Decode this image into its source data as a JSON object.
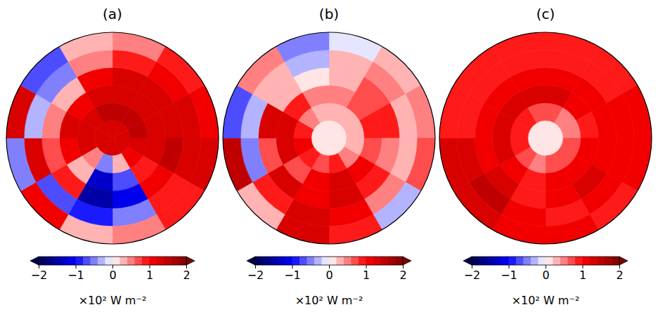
{
  "chart_data": [
    {
      "type": "heatmap",
      "title": "(a)",
      "cells": [
        [
          1.3,
          1.3,
          1.3,
          1.3,
          1.3,
          1.3,
          1.3,
          1.3,
          1.3,
          1.3,
          1.3,
          1.3
        ],
        [
          1.4,
          1.5,
          1.5,
          1.3,
          1.0,
          0.2,
          -0.6,
          0.5,
          1.2,
          1.3,
          1.3,
          1.4
        ],
        [
          1.3,
          1.3,
          1.3,
          1.2,
          0.8,
          -0.8,
          -1.3,
          0.2,
          1.0,
          1.2,
          1.0,
          1.2
        ],
        [
          1.2,
          1.2,
          1.3,
          1.4,
          1.0,
          -1.2,
          -1.5,
          0.8,
          0.6,
          0.5,
          0.2,
          1.0
        ],
        [
          0.8,
          1.0,
          1.3,
          1.3,
          0.9,
          -0.5,
          -1.0,
          -0.8,
          1.2,
          -0.3,
          -0.5,
          0.5
        ],
        [
          0.5,
          0.8,
          1.0,
          1.2,
          0.8,
          0.5,
          0.3,
          1.0,
          -0.5,
          1.2,
          -0.8,
          0.3
        ]
      ],
      "colorbar": {
        "range": [
          -2,
          2
        ],
        "ticks": [
          {
            "value": -2,
            "label": "−2"
          },
          {
            "value": -1,
            "label": "−1"
          },
          0,
          1,
          2
        ],
        "label": "×10² W m⁻²"
      }
    },
    {
      "type": "heatmap",
      "title": "(b)",
      "cells": [
        [
          0.1,
          0.1,
          0.1,
          0.1,
          0.1,
          0.1,
          0.1,
          0.1,
          0.1,
          0.1,
          0.1,
          0.1
        ],
        [
          0.2,
          0.3,
          0.3,
          0.2,
          0.5,
          0.8,
          0.6,
          0.8,
          1.0,
          0.9,
          0.4,
          0.2
        ],
        [
          0.5,
          0.7,
          0.8,
          0.6,
          1.0,
          1.2,
          1.0,
          0.6,
          1.2,
          1.3,
          0.9,
          0.5
        ],
        [
          0.3,
          0.6,
          0.8,
          0.4,
          0.8,
          1.3,
          1.0,
          1.2,
          0.7,
          1.2,
          0.2,
          0.1
        ],
        [
          0.2,
          0.4,
          0.2,
          0.3,
          0.5,
          1.0,
          1.2,
          0.9,
          -0.5,
          -0.3,
          0.3,
          -0.4
        ],
        [
          -0.2,
          0.2,
          0.5,
          0.7,
          -0.3,
          0.8,
          1.3,
          0.3,
          1.4,
          -0.8,
          0.4,
          -0.6
        ]
      ],
      "colorbar": {
        "range": [
          -2,
          2
        ],
        "ticks": [
          {
            "value": -2,
            "label": "−2"
          },
          {
            "value": -1,
            "label": "−1"
          },
          0,
          1,
          2
        ],
        "label": "×10² W m⁻²"
      }
    },
    {
      "type": "heatmap",
      "title": "(c)",
      "cells": [
        [
          0.1,
          0.1,
          0.1,
          0.1,
          0.1,
          0.1,
          0.1,
          0.1,
          0.1,
          0.1,
          0.1,
          0.1
        ],
        [
          0.6,
          0.5,
          0.5,
          0.7,
          0.7,
          0.6,
          0.5,
          0.6,
          0.8,
          0.9,
          0.8,
          0.7
        ],
        [
          1.2,
          1.0,
          0.9,
          1.0,
          1.0,
          1.1,
          0.9,
          1.0,
          1.2,
          1.3,
          1.2,
          1.2
        ],
        [
          1.1,
          1.0,
          1.0,
          1.1,
          1.2,
          1.0,
          0.9,
          1.3,
          1.1,
          1.0,
          1.0,
          1.0
        ],
        [
          0.9,
          0.9,
          1.0,
          1.1,
          1.0,
          0.8,
          1.0,
          1.4,
          1.2,
          0.9,
          0.9,
          0.9
        ],
        [
          0.8,
          0.9,
          1.1,
          1.0,
          0.9,
          1.0,
          1.1,
          1.3,
          1.2,
          0.9,
          0.8,
          0.8
        ]
      ],
      "colorbar": {
        "range": [
          -2,
          2
        ],
        "ticks": [
          {
            "value": -2,
            "label": "−2"
          },
          {
            "value": -1,
            "label": "−1"
          },
          0,
          1,
          2
        ],
        "label": "×10² W m⁻²"
      }
    }
  ]
}
